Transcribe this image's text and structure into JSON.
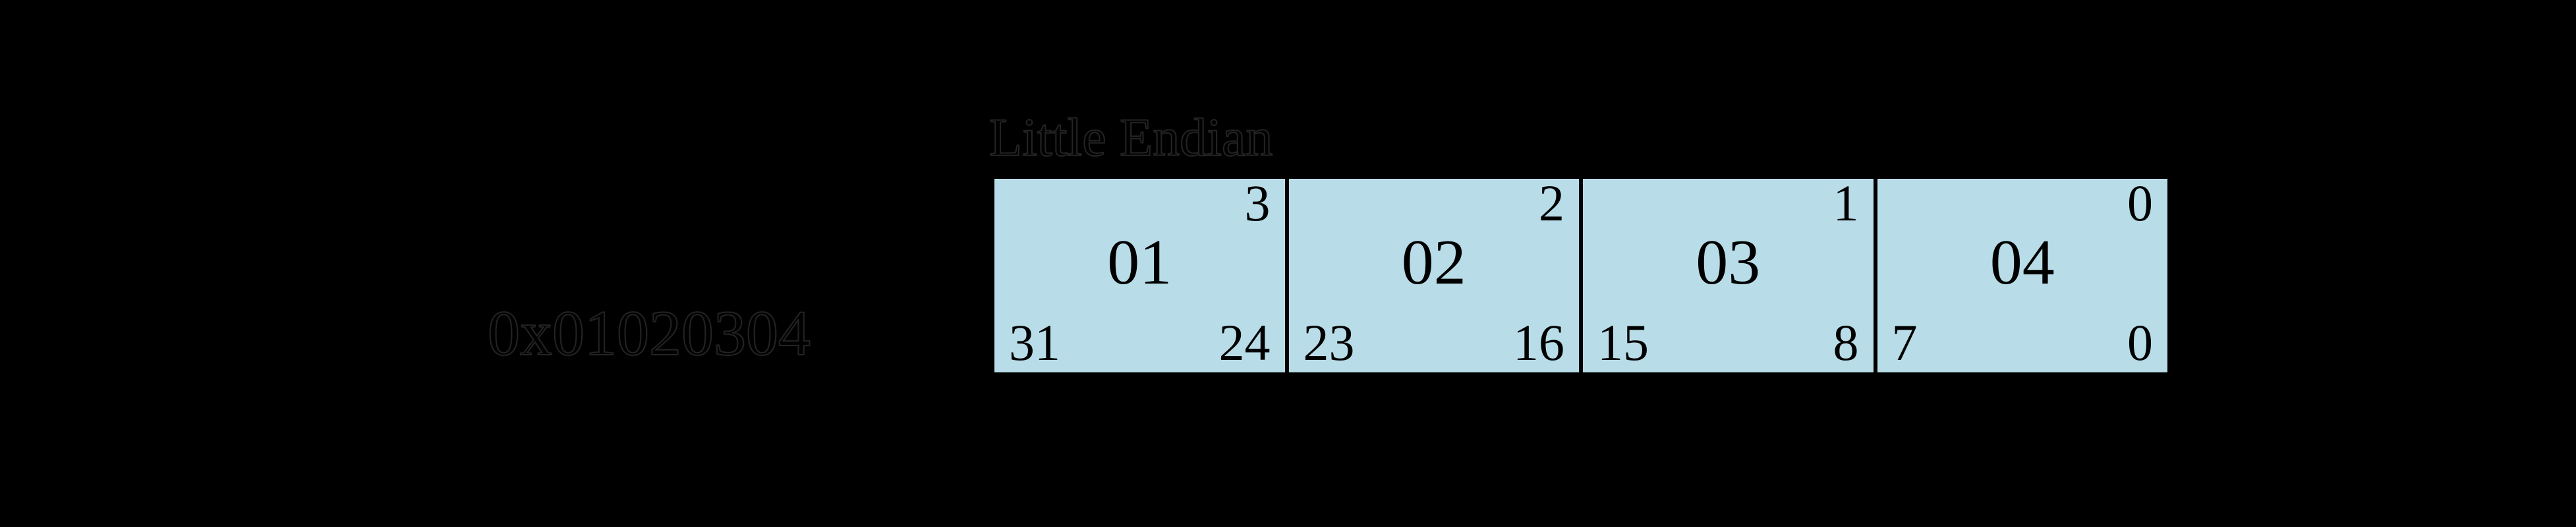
{
  "diagram": {
    "title": "Little Endian",
    "value_label": "0x01020304",
    "colors": {
      "background": "#000000",
      "box_fill": "#b8dde8",
      "box_border": "#000000",
      "ink": "#000000"
    },
    "boxes": [
      {
        "byte_index": "3",
        "byte_value": "01",
        "bit_high": "31",
        "bit_low": "24"
      },
      {
        "byte_index": "2",
        "byte_value": "02",
        "bit_high": "23",
        "bit_low": "16"
      },
      {
        "byte_index": "1",
        "byte_value": "03",
        "bit_high": "15",
        "bit_low": "8"
      },
      {
        "byte_index": "0",
        "byte_value": "04",
        "bit_high": "7",
        "bit_low": "0"
      }
    ]
  }
}
